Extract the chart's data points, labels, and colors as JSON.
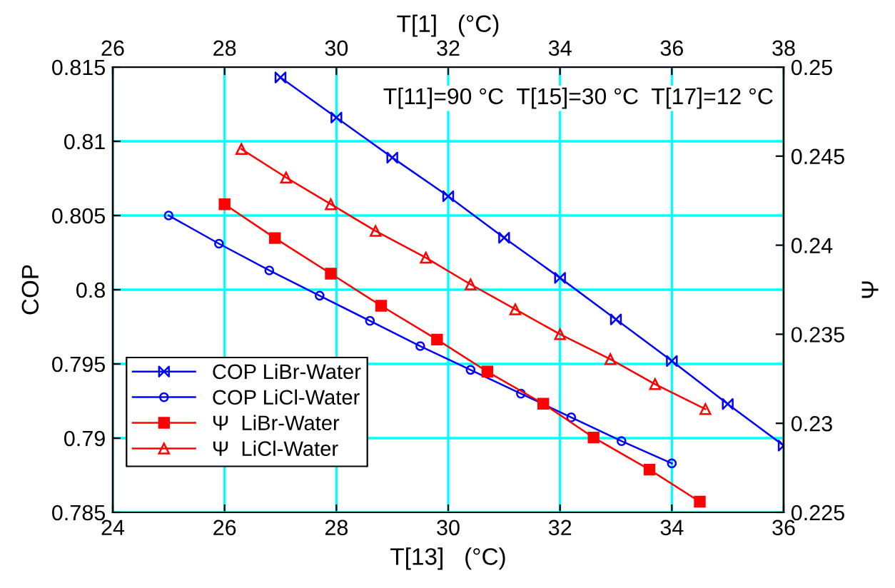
{
  "chart_data": {
    "type": "line",
    "xlabel": "T[13]   (°C)",
    "x2label": "T[1]   (°C)",
    "ylabel": "COP",
    "y2label": "Ψ",
    "xlim": [
      24,
      36
    ],
    "xticks": [
      24,
      26,
      28,
      30,
      32,
      34,
      36
    ],
    "x2lim": [
      26,
      38
    ],
    "x2ticks": [
      26,
      28,
      30,
      32,
      34,
      36,
      38
    ],
    "ylim": [
      0.785,
      0.815
    ],
    "yticks": [
      0.785,
      0.79,
      0.795,
      0.8,
      0.805,
      0.81,
      0.815
    ],
    "y2lim": [
      0.225,
      0.25
    ],
    "y2ticks": [
      0.225,
      0.23,
      0.235,
      0.24,
      0.245,
      0.25
    ],
    "grid": true,
    "legend": "bottom left",
    "line_style": "solid",
    "annotations": [
      "T[11]=90 °C  T[15]=30 °C  T[17]=12 °C"
    ],
    "series": [
      {
        "name": "COP LiBr-Water",
        "color": "#0000ff",
        "marker": "diamond",
        "x": [
          27,
          28,
          29,
          30,
          31,
          32,
          33,
          34,
          35,
          36
        ],
        "values": [
          0.8143,
          0.8116,
          0.8089,
          0.8063,
          0.8035,
          0.8008,
          0.798,
          0.7952,
          0.7923,
          0.7895
        ]
      },
      {
        "name": "COP LiCl-Water",
        "color": "#0000ff",
        "marker": "circle",
        "x": [
          25,
          25.9,
          26.8,
          27.7,
          28.6,
          29.5,
          30.4,
          31.3,
          32.2,
          33.1,
          34
        ],
        "values": [
          0.805,
          0.8031,
          0.8013,
          0.7996,
          0.7979,
          0.7962,
          0.7946,
          0.793,
          0.7914,
          0.7898,
          0.7883
        ]
      },
      {
        "name": "Ψ  LiBr-Water",
        "color": "#ff0000",
        "marker": "square",
        "axis": "y2",
        "x": [
          26,
          26.9,
          27.9,
          28.8,
          29.8,
          30.7,
          31.7,
          32.6,
          33.6,
          34.5
        ],
        "values": [
          0.2423,
          0.2404,
          0.2384,
          0.2366,
          0.2347,
          0.2329,
          0.2311,
          0.2292,
          0.2274,
          0.2256
        ]
      },
      {
        "name": "Ψ  LiCl-Water",
        "color": "#ff0000",
        "marker": "triangle",
        "axis": "y2",
        "x": [
          26.3,
          27.1,
          27.9,
          28.7,
          29.6,
          30.4,
          31.2,
          32,
          32.9,
          33.7,
          34.6
        ],
        "values": [
          0.2454,
          0.2438,
          0.2423,
          0.2408,
          0.2393,
          0.2378,
          0.2364,
          0.235,
          0.2336,
          0.2322,
          0.2308
        ]
      }
    ]
  }
}
